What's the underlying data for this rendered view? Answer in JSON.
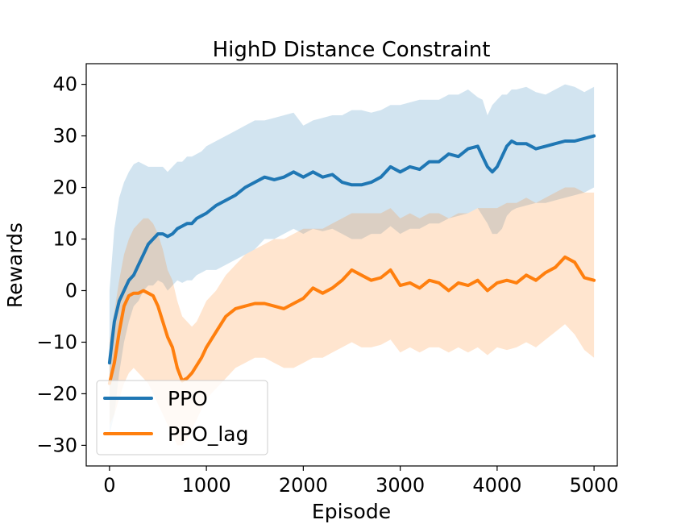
{
  "chart_data": {
    "type": "line",
    "title": "HighD Distance Constraint",
    "xlabel": "Episode",
    "ylabel": "Rewards",
    "xlim": [
      -240,
      5240
    ],
    "ylim": [
      -34,
      44
    ],
    "xticks": [
      0,
      1000,
      2000,
      3000,
      4000,
      5000
    ],
    "xtick_labels": [
      "0",
      "1000",
      "2000",
      "3000",
      "4000",
      "5000"
    ],
    "yticks": [
      -30,
      -20,
      -10,
      0,
      10,
      20,
      30,
      40
    ],
    "ytick_labels": [
      "−30",
      "−20",
      "−10",
      "0",
      "10",
      "20",
      "30",
      "40"
    ],
    "grid": false,
    "legend_position": "lower-left",
    "series": [
      {
        "name": "PPO",
        "color": "#1f77b4",
        "x": [
          0,
          50,
          100,
          150,
          200,
          250,
          300,
          350,
          400,
          450,
          500,
          550,
          600,
          650,
          700,
          750,
          800,
          850,
          900,
          950,
          1000,
          1100,
          1200,
          1300,
          1400,
          1500,
          1600,
          1700,
          1800,
          1900,
          2000,
          2100,
          2200,
          2300,
          2400,
          2500,
          2600,
          2700,
          2800,
          2900,
          3000,
          3100,
          3200,
          3300,
          3400,
          3500,
          3600,
          3700,
          3800,
          3850,
          3900,
          3950,
          4000,
          4050,
          4100,
          4150,
          4200,
          4300,
          4400,
          4500,
          4600,
          4700,
          4800,
          4900,
          5000
        ],
        "values": [
          -14,
          -6,
          -2,
          0,
          2,
          3,
          5,
          7,
          9,
          10,
          11,
          11,
          10.5,
          11,
          12,
          12.5,
          13,
          13,
          14,
          14.5,
          15,
          16.5,
          17.5,
          18.5,
          20,
          21,
          22,
          21.5,
          22,
          23,
          22,
          23,
          22,
          22.5,
          21,
          20.5,
          20.5,
          21,
          22,
          24,
          23,
          24,
          23.5,
          25,
          25,
          26.5,
          26,
          27.5,
          28,
          26,
          24,
          23,
          24,
          26,
          28,
          29,
          28.5,
          28.5,
          27.5,
          28,
          28.5,
          29,
          29,
          29.5,
          30
        ],
        "band_upper": [
          0,
          12,
          18,
          21,
          23,
          24.5,
          25,
          24.5,
          24,
          24,
          24,
          24,
          23,
          24,
          25,
          25,
          26,
          26,
          26.5,
          27,
          28,
          29,
          30,
          31,
          32,
          33,
          33,
          33.5,
          34,
          34.5,
          32,
          33,
          33.5,
          34,
          34,
          35,
          35,
          34.5,
          35,
          36,
          36,
          36.5,
          37,
          37,
          37,
          38,
          38,
          39,
          37.5,
          37,
          34,
          36,
          37,
          38,
          38,
          39,
          39,
          39.5,
          38.5,
          38,
          39,
          40,
          39.5,
          38.5,
          39.5
        ],
        "band_lower": [
          -28,
          -24,
          -16,
          -10,
          -6,
          -3,
          -2,
          0,
          1,
          1,
          2,
          1.5,
          0,
          1,
          2,
          1.5,
          2,
          2,
          3,
          3.5,
          4,
          4,
          5,
          6,
          7,
          8,
          10,
          10,
          11,
          12,
          11,
          12,
          11.5,
          12,
          11,
          10,
          10,
          11,
          11,
          12.5,
          11,
          12,
          12,
          13,
          13,
          14,
          14.5,
          15,
          16,
          14.5,
          13,
          11,
          11,
          12,
          14.5,
          15.5,
          16,
          16.5,
          17,
          17,
          17.5,
          18,
          18.5,
          19,
          20
        ]
      },
      {
        "name": "PPO_lag",
        "color": "#ff7f0e",
        "x": [
          0,
          50,
          100,
          150,
          200,
          250,
          300,
          350,
          400,
          450,
          500,
          550,
          600,
          650,
          700,
          750,
          800,
          850,
          900,
          950,
          1000,
          1100,
          1200,
          1300,
          1400,
          1500,
          1600,
          1700,
          1800,
          1900,
          2000,
          2100,
          2200,
          2300,
          2400,
          2500,
          2600,
          2700,
          2800,
          2900,
          3000,
          3100,
          3200,
          3300,
          3400,
          3500,
          3600,
          3700,
          3800,
          3900,
          4000,
          4100,
          4200,
          4300,
          4400,
          4500,
          4600,
          4700,
          4800,
          4900,
          5000
        ],
        "values": [
          -18,
          -14,
          -8,
          -3,
          -1,
          -0.5,
          -0.5,
          0,
          -0.5,
          -1,
          -3,
          -6,
          -9,
          -11,
          -15,
          -17.5,
          -17,
          -16,
          -14.5,
          -13,
          -11,
          -8,
          -5,
          -3.5,
          -3,
          -2.5,
          -2.5,
          -3,
          -3.5,
          -2.5,
          -1.5,
          0.5,
          -0.5,
          0.5,
          2,
          4,
          3,
          2,
          2.5,
          4,
          1,
          1.5,
          0.5,
          2,
          1.5,
          0,
          1.5,
          1,
          2,
          0,
          1.5,
          2,
          1.5,
          3,
          2,
          3.5,
          4.5,
          6.5,
          5.5,
          2.5,
          2
        ],
        "band_upper": [
          -10,
          -4,
          2,
          7,
          10,
          12,
          13,
          14,
          14,
          13,
          11,
          8,
          4,
          2,
          -2,
          -5,
          -6,
          -7,
          -6,
          -4,
          -2,
          0,
          3,
          5,
          7,
          8,
          9,
          10,
          10,
          11,
          12,
          12,
          12,
          13,
          14,
          15,
          15,
          15,
          15,
          16,
          14,
          15,
          14,
          15,
          15,
          14,
          15,
          15,
          16,
          16,
          16,
          17,
          17,
          18,
          17,
          18,
          19,
          20,
          20,
          19,
          19
        ],
        "band_lower": [
          -26,
          -24,
          -21,
          -18,
          -16,
          -15,
          -16,
          -17,
          -18,
          -20,
          -22,
          -24,
          -26,
          -28,
          -30,
          -30,
          -29,
          -27,
          -25,
          -23,
          -21,
          -19,
          -17,
          -15,
          -14,
          -13,
          -13,
          -14,
          -15,
          -15,
          -14,
          -13,
          -13,
          -12,
          -11,
          -10,
          -11,
          -11,
          -10.5,
          -9.5,
          -12,
          -11,
          -12,
          -11,
          -11,
          -12,
          -11,
          -12,
          -11,
          -12.5,
          -11,
          -11.5,
          -11,
          -10,
          -11,
          -9.5,
          -8,
          -6.5,
          -8.5,
          -11.5,
          -13
        ]
      }
    ]
  }
}
